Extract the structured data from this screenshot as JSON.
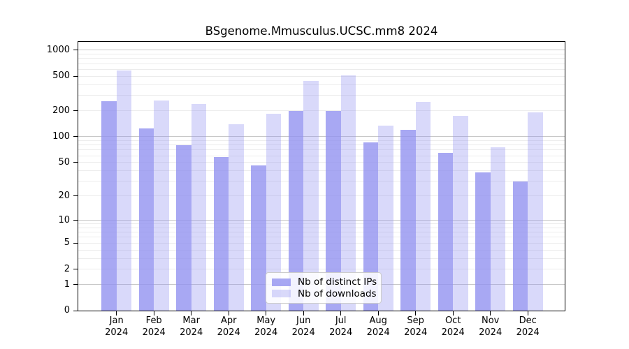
{
  "title": "BSgenome.Mmusculus.UCSC.mm8 2024",
  "chart_data": {
    "type": "bar",
    "categories": [
      "Jan",
      "Feb",
      "Mar",
      "Apr",
      "May",
      "Jun",
      "Jul",
      "Aug",
      "Sep",
      "Oct",
      "Nov",
      "Dec"
    ],
    "year": "2024",
    "series": [
      {
        "name": "Nb of distinct IPs",
        "color": "rgba(146,146,240,0.8)",
        "values": [
          260,
          125,
          80,
          58,
          46,
          200,
          200,
          85,
          120,
          65,
          38,
          30
        ]
      },
      {
        "name": "Nb of downloads",
        "color": "rgba(146,146,240,0.35)",
        "values": [
          580,
          265,
          240,
          140,
          185,
          445,
          510,
          135,
          255,
          175,
          75,
          190
        ]
      }
    ],
    "yscale": "log1p",
    "ylim": [
      0,
      1260
    ],
    "yticks": [
      0,
      1,
      2,
      5,
      10,
      20,
      50,
      100,
      200,
      500,
      1000
    ],
    "grid": {
      "major_ticks": [
        1,
        10,
        100,
        1000
      ],
      "minor_ticks": [
        2,
        3,
        4,
        5,
        6,
        7,
        8,
        9,
        20,
        30,
        40,
        50,
        60,
        70,
        80,
        90,
        200,
        300,
        400,
        500,
        600,
        700,
        800,
        900
      ],
      "major_color": "#c8c8c8",
      "minor_color": "#ececec"
    },
    "legend_position": "lower-center"
  }
}
